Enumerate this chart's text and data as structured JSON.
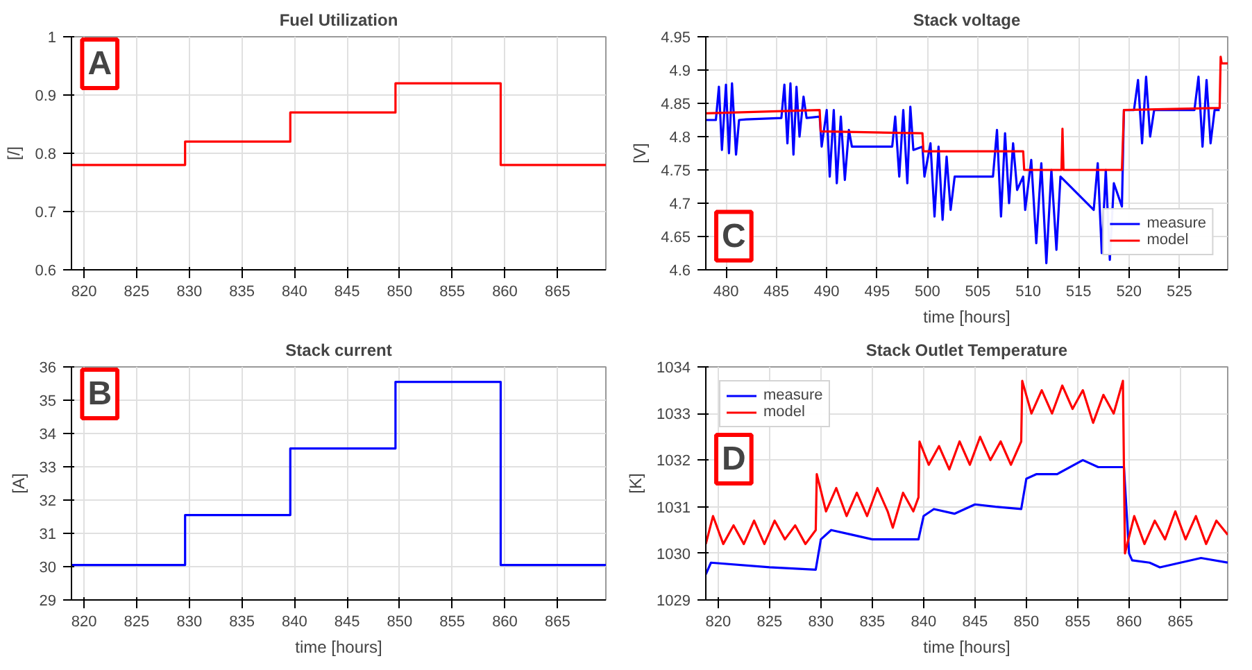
{
  "chart_data": [
    {
      "type": "line",
      "title": "Fuel Utilization",
      "ylabel": "[/]",
      "annotations": [
        "A"
      ],
      "xlim": [
        818.8,
        869.6
      ],
      "xticks": [
        820,
        825,
        830,
        835,
        840,
        845,
        850,
        855,
        860,
        865
      ],
      "ylim": [
        0.6,
        1
      ],
      "yticks": [
        {
          "value": 0.6,
          "label": "0.6"
        },
        {
          "value": 0.7,
          "label": "0.7"
        },
        {
          "value": 0.8,
          "label": "0.8"
        },
        {
          "value": 0.9,
          "label": "0.9"
        },
        1
      ],
      "grid": true,
      "legend": false,
      "series": [
        {
          "color": "#ff0000",
          "x": [
            818.8,
            829.6,
            829.6,
            839.6,
            839.6,
            849.6,
            849.6,
            859.6,
            859.6,
            869.6
          ],
          "values": [
            0.78,
            0.78,
            0.82,
            0.82,
            0.87,
            0.87,
            0.92,
            0.92,
            0.78,
            0.78
          ]
        }
      ]
    },
    {
      "type": "line",
      "title": "Stack current",
      "xlabel": "time [hours]",
      "ylabel": "[A]",
      "annotations": [
        "B"
      ],
      "xlim": [
        818.8,
        869.6
      ],
      "xticks": [
        820,
        825,
        830,
        835,
        840,
        845,
        850,
        855,
        860,
        865
      ],
      "ylim": [
        29,
        36
      ],
      "yticks": [
        29,
        30,
        31,
        32,
        33,
        34,
        35,
        36
      ],
      "grid": true,
      "legend": false,
      "series": [
        {
          "color": "#0000ff",
          "x": [
            818.8,
            829.6,
            829.6,
            839.6,
            839.6,
            849.6,
            849.6,
            859.6,
            859.6,
            869.6
          ],
          "values": [
            30.05,
            30.05,
            31.55,
            31.55,
            33.55,
            33.55,
            35.55,
            35.55,
            30.05,
            30.05
          ]
        }
      ]
    },
    {
      "type": "line",
      "title": "Stack voltage",
      "xlabel": "time [hours]",
      "ylabel": "[V]",
      "annotations": [
        "C"
      ],
      "xlim": [
        478,
        529.8
      ],
      "xticks": [
        480,
        485,
        490,
        495,
        500,
        505,
        510,
        515,
        520,
        525
      ],
      "ylim": [
        4.6,
        4.95
      ],
      "yticks": [
        {
          "value": 4.6,
          "label": "4.6"
        },
        4.65,
        {
          "value": 4.7,
          "label": "4.7"
        },
        4.75,
        {
          "value": 4.8,
          "label": "4.8"
        },
        4.85,
        {
          "value": 4.9,
          "label": "4.9"
        },
        4.95
      ],
      "grid": true,
      "legend": "bottom right",
      "series": [
        {
          "name": "measure",
          "color": "#0000ff",
          "x": [
            478,
            479,
            479.3,
            479.6,
            480,
            480.3,
            480.6,
            481,
            481.3,
            482,
            485.5,
            485.8,
            486.1,
            486.4,
            486.7,
            487,
            487.3,
            487.7,
            488,
            489.3,
            489.5,
            490,
            490.3,
            490.7,
            491,
            491.4,
            491.8,
            492.2,
            492.5,
            496.5,
            496.8,
            497.2,
            497.6,
            498,
            498.3,
            498.6,
            499.5,
            499.7,
            500.3,
            500.7,
            501.1,
            501.5,
            501.9,
            502.3,
            502.7,
            506.5,
            506.9,
            507.3,
            507.7,
            508.1,
            508.5,
            508.9,
            509.5,
            509.7,
            510.3,
            510.8,
            511.3,
            511.8,
            512.3,
            512.8,
            513.2,
            516.5,
            516.9,
            517.3,
            517.7,
            518.1,
            518.5,
            519.3,
            519.5,
            520.5,
            520.9,
            521.3,
            521.7,
            522.1,
            522.5,
            526.5,
            526.9,
            527.3,
            527.7,
            528.1,
            528.5,
            529
          ],
          "values": [
            4.825,
            4.825,
            4.875,
            4.78,
            4.878,
            4.775,
            4.88,
            4.773,
            4.825,
            4.826,
            4.828,
            4.878,
            4.79,
            4.88,
            4.773,
            4.875,
            4.8,
            4.86,
            4.828,
            4.83,
            4.785,
            4.84,
            4.74,
            4.84,
            4.73,
            4.83,
            4.735,
            4.81,
            4.785,
            4.785,
            4.83,
            4.74,
            4.84,
            4.73,
            4.845,
            4.78,
            4.785,
            4.74,
            4.79,
            4.68,
            4.785,
            4.675,
            4.77,
            4.69,
            4.74,
            4.74,
            4.81,
            4.68,
            4.805,
            4.7,
            4.79,
            4.72,
            4.74,
            4.69,
            4.765,
            4.64,
            4.76,
            4.61,
            4.75,
            4.63,
            4.74,
            4.69,
            4.76,
            4.625,
            4.75,
            4.615,
            4.73,
            4.695,
            4.84,
            4.84,
            4.885,
            4.79,
            4.89,
            4.8,
            4.84,
            4.84,
            4.89,
            4.785,
            4.885,
            4.79,
            4.84,
            4.84
          ]
        },
        {
          "name": "model",
          "color": "#ff0000",
          "x": [
            478,
            489.3,
            489.4,
            499.5,
            499.6,
            509.5,
            509.6,
            513.3,
            513.4,
            513.5,
            519.3,
            519.5,
            529,
            529.1,
            529.2,
            529.8
          ],
          "values": [
            4.835,
            4.84,
            4.808,
            4.805,
            4.778,
            4.778,
            4.75,
            4.75,
            4.812,
            4.75,
            4.75,
            4.84,
            4.843,
            4.92,
            4.91,
            4.91
          ]
        }
      ]
    },
    {
      "type": "line",
      "title": "Stack Outlet Temperature",
      "xlabel": "time [hours]",
      "ylabel": "[K]",
      "annotations": [
        "D"
      ],
      "xlim": [
        818.8,
        869.6
      ],
      "xticks": [
        820,
        825,
        830,
        835,
        840,
        845,
        850,
        855,
        860,
        865
      ],
      "ylim": [
        1029,
        1034
      ],
      "yticks": [
        1029,
        1030,
        1031,
        1032,
        1033,
        1034
      ],
      "grid": true,
      "legend": "top left",
      "series": [
        {
          "name": "measure",
          "color": "#0000ff",
          "x": [
            818.8,
            819.3,
            825,
            829.5,
            830,
            831,
            833,
            835,
            839.5,
            840,
            841,
            843,
            845,
            847,
            849.5,
            850,
            851,
            853,
            855.5,
            857,
            859.5,
            860,
            860.3,
            862,
            863,
            867,
            869.6
          ],
          "values": [
            1029.55,
            1029.8,
            1029.7,
            1029.65,
            1030.3,
            1030.5,
            1030.4,
            1030.3,
            1030.3,
            1030.8,
            1030.95,
            1030.85,
            1031.05,
            1031.0,
            1030.95,
            1031.6,
            1031.7,
            1031.7,
            1032.0,
            1031.85,
            1031.85,
            1030.0,
            1029.85,
            1029.8,
            1029.7,
            1029.9,
            1029.8
          ]
        },
        {
          "name": "model",
          "color": "#ff0000",
          "x": [
            818.8,
            819.5,
            820.5,
            821.5,
            822.5,
            823.5,
            824.5,
            825.5,
            826.5,
            827.5,
            828.5,
            829.5,
            829.6,
            830.5,
            831.5,
            832.5,
            833.5,
            834.5,
            835.5,
            836.5,
            837,
            838,
            839,
            839.5,
            839.6,
            840.5,
            841.5,
            842.5,
            843.5,
            844.5,
            845.5,
            846.5,
            847.5,
            848.5,
            849.3,
            849.5,
            849.6,
            850.5,
            851.5,
            852.5,
            853.5,
            854.5,
            855.5,
            856.5,
            857.5,
            858.5,
            859.4,
            859.6,
            860.5,
            861.5,
            862.5,
            863.5,
            864.5,
            865.5,
            866.5,
            867.5,
            868.5,
            869.6
          ],
          "values": [
            1030.2,
            1030.8,
            1030.2,
            1030.6,
            1030.2,
            1030.7,
            1030.2,
            1030.7,
            1030.3,
            1030.6,
            1030.2,
            1030.5,
            1031.7,
            1030.9,
            1031.4,
            1030.8,
            1031.3,
            1030.8,
            1031.4,
            1030.9,
            1030.55,
            1031.3,
            1030.9,
            1031.2,
            1032.4,
            1031.9,
            1032.3,
            1031.8,
            1032.4,
            1031.9,
            1032.5,
            1032.0,
            1032.4,
            1031.9,
            1032.3,
            1032.4,
            1033.7,
            1033.0,
            1033.5,
            1033.0,
            1033.6,
            1033.1,
            1033.5,
            1032.8,
            1033.4,
            1033.0,
            1033.7,
            1030.0,
            1030.8,
            1030.2,
            1030.7,
            1030.3,
            1030.9,
            1030.3,
            1030.8,
            1030.2,
            1030.7,
            1030.4
          ]
        }
      ]
    }
  ]
}
